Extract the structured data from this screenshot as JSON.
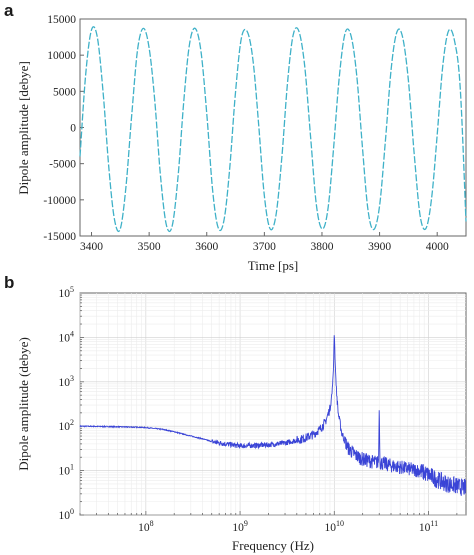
{
  "chart_data": [
    {
      "panel": "a",
      "type": "line",
      "title": "",
      "xlabel": "Time [ps]",
      "ylabel": "Dipole amplitude [debye]",
      "xlim": [
        3380,
        4050
      ],
      "ylim": [
        -15000,
        15000
      ],
      "xticks": [
        3400,
        3500,
        3600,
        3700,
        3800,
        3900,
        4000
      ],
      "yticks": [
        -15000,
        -10000,
        -5000,
        0,
        5000,
        10000,
        15000
      ],
      "x_tick_labels": [
        "3400",
        "3500",
        "3600",
        "3700",
        "3800",
        "3900",
        "4000"
      ],
      "y_tick_labels": [
        "-15000",
        "-10000",
        "-5000",
        "0",
        "5000",
        "10000",
        "15000"
      ],
      "grid": false,
      "line_style": "dashed",
      "color": "#3fb1c8",
      "series": [
        {
          "x": [
            3380,
            3390,
            3400,
            3410,
            3420,
            3430,
            3440,
            3450,
            3460,
            3470,
            3480,
            3490,
            3500,
            3510,
            3520,
            3530,
            3540,
            3550,
            3560,
            3570,
            3580,
            3590,
            3600,
            3610,
            3620,
            3630,
            3640,
            3650,
            3660,
            3670,
            3680,
            3690,
            3700,
            3710,
            3720,
            3730,
            3740,
            3750,
            3760,
            3770,
            3780,
            3790,
            3800,
            3810,
            3820,
            3830,
            3840,
            3850,
            3860,
            3870,
            3880,
            3890,
            3900,
            3910,
            3920,
            3930,
            3940,
            3950,
            3960,
            3970,
            3980,
            3990,
            4000,
            4010,
            4020,
            4030,
            4040,
            4050
          ],
          "y": [
            -4000,
            7500,
            13500,
            12500,
            5000,
            -5500,
            -12800,
            -14000,
            -8000,
            2000,
            10800,
            13700,
            11000,
            3500,
            -7000,
            -13500,
            -13600,
            -7000,
            3500,
            11500,
            13700,
            10500,
            2000,
            -8500,
            -13900,
            -12800,
            -5500,
            5000,
            12300,
            13300,
            9500,
            500,
            -9500,
            -14000,
            -12200,
            -4500,
            6000,
            12800,
            13300,
            8500,
            -1000,
            -10500,
            -14000,
            -11500,
            -3000,
            7000,
            13000,
            12800,
            7500,
            -2500,
            -11500,
            -14100,
            -10800,
            -2000,
            8000,
            13200,
            12500,
            6500,
            -3500,
            -12000,
            -14000,
            -10000,
            -1000,
            8800,
            13400,
            12000,
            5500,
            -13000
          ]
        }
      ]
    },
    {
      "panel": "b",
      "type": "line",
      "title": "",
      "xlabel": "Frequency (Hz)",
      "ylabel": "Dipole amplitude (debye)",
      "x_scale": "log",
      "y_scale": "log",
      "xlim": [
        20000000,
        250000000000
      ],
      "ylim": [
        1,
        100000
      ],
      "x_tick_labels": [
        "10^8",
        "10^9",
        "10^10",
        "10^11"
      ],
      "y_tick_labels": [
        "10^0",
        "10^1",
        "10^2",
        "10^3",
        "10^4",
        "10^5"
      ],
      "grid": true,
      "color": "#3a44d6",
      "series": [
        {
          "x": [
            20000000,
            30000000,
            50000000,
            80000000,
            100000000,
            150000000,
            200000000,
            300000000,
            400000000,
            500000000,
            700000000,
            1000000000,
            1500000000,
            2000000000,
            3000000000,
            4000000000,
            5000000000,
            6000000000,
            7000000000,
            8000000000,
            9000000000,
            9500000000,
            9800000000,
            10000000000,
            10200000000,
            10500000000,
            11000000000,
            12000000000,
            14000000000,
            17000000000,
            20000000000,
            25000000000,
            29500000000,
            30000000000,
            30500000000,
            35000000000,
            40000000000,
            50000000000,
            60000000000,
            80000000000,
            100000000000,
            130000000000,
            160000000000,
            200000000000,
            250000000000
          ],
          "y": [
            100,
            99,
            97,
            95,
            93,
            85,
            75,
            60,
            52,
            45,
            40,
            36,
            37,
            38,
            42,
            48,
            55,
            65,
            85,
            120,
            250,
            600,
            2000,
            13500,
            3000,
            700,
            200,
            70,
            32,
            22,
            18,
            16,
            15,
            350,
            15,
            14,
            13,
            12,
            11,
            10,
            8,
            6,
            5,
            4.5,
            4
          ]
        }
      ]
    }
  ]
}
